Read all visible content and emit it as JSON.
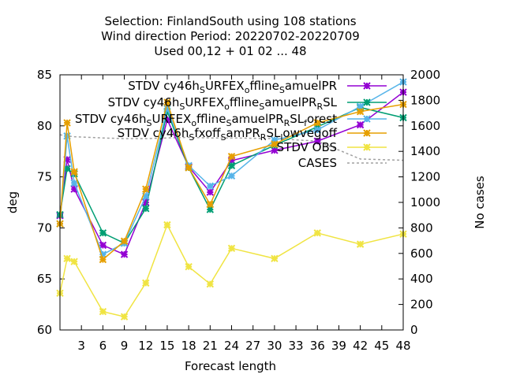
{
  "chart_data": {
    "type": "line",
    "title_lines": [
      "Selection: FinlandSouth using    108 stations",
      "Wind direction   Period: 20220702-20220709",
      "Used  00,12  + 01 02 ... 48"
    ],
    "xlabel": "Forecast length",
    "ylabel": "deg",
    "y2label": "No cases",
    "xlim": [
      0,
      48
    ],
    "ylim": [
      60,
      85
    ],
    "y2lim": [
      0,
      2000
    ],
    "x_ticks": [
      3,
      6,
      9,
      12,
      15,
      18,
      21,
      24,
      27,
      30,
      33,
      36,
      39,
      42,
      45,
      48
    ],
    "y_ticks": [
      60,
      65,
      70,
      75,
      80,
      85
    ],
    "y2_ticks": [
      0,
      200,
      400,
      600,
      800,
      1000,
      1200,
      1400,
      1600,
      1800,
      2000
    ],
    "grid": false,
    "legend_position": "top-right",
    "series": [
      {
        "name": "STDV cy46h_SURFEX_offline_SamuelPR",
        "legend_parts": [
          [
            "STDV cy46h",
            "n"
          ],
          [
            "S",
            "sub"
          ],
          [
            "URFEX",
            "n"
          ],
          [
            "o",
            "sub"
          ],
          [
            "ffline",
            "n"
          ],
          [
            "S",
            "sub"
          ],
          [
            "amuelPR",
            "n"
          ]
        ],
        "color": "#9400d3",
        "marker": "x",
        "x": [
          0,
          1,
          2,
          6,
          9,
          12,
          15,
          18,
          21,
          24,
          30,
          36,
          42,
          48
        ],
        "values": [
          71.2,
          76.7,
          73.8,
          68.3,
          67.4,
          72.5,
          80.6,
          76.0,
          73.5,
          76.6,
          77.6,
          78.5,
          80.1,
          83.3
        ]
      },
      {
        "name": "STDV cy46h_SURFEX_offline_SamuelPR_RSL",
        "legend_parts": [
          [
            "STDV cy46h",
            "n"
          ],
          [
            "S",
            "sub"
          ],
          [
            "URFEX",
            "n"
          ],
          [
            "o",
            "sub"
          ],
          [
            "ffline",
            "n"
          ],
          [
            "S",
            "sub"
          ],
          [
            "amuelPR",
            "n"
          ],
          [
            "R",
            "sub"
          ],
          [
            "SL",
            "n"
          ]
        ],
        "color": "#009e73",
        "marker": "x",
        "x": [
          0,
          1,
          2,
          6,
          9,
          12,
          15,
          18,
          21,
          24,
          30,
          36,
          42,
          48
        ],
        "values": [
          71.3,
          75.8,
          75.3,
          69.5,
          68.5,
          71.9,
          81.4,
          75.9,
          71.8,
          76.1,
          78.1,
          79.9,
          81.8,
          80.8
        ]
      },
      {
        "name": "STDV cy46h_SURFEX_offline_SamuelPR_RSL_forest",
        "legend_parts": [
          [
            "STDV cy46h",
            "n"
          ],
          [
            "S",
            "sub"
          ],
          [
            "URFEX",
            "n"
          ],
          [
            "o",
            "sub"
          ],
          [
            "ffline",
            "n"
          ],
          [
            "S",
            "sub"
          ],
          [
            "amuelPR",
            "n"
          ],
          [
            "R",
            "sub"
          ],
          [
            "SL",
            "n"
          ],
          [
            "f",
            "sub"
          ],
          [
            "orest",
            "n"
          ]
        ],
        "color": "#56b4e9",
        "marker": "x",
        "x": [
          0,
          1,
          2,
          6,
          9,
          12,
          15,
          18,
          21,
          24,
          30,
          36,
          42,
          48
        ],
        "values": [
          70.4,
          79.0,
          74.4,
          67.4,
          68.5,
          73.1,
          81.7,
          76.1,
          74.1,
          75.1,
          78.6,
          79.6,
          81.9,
          84.3
        ]
      },
      {
        "name": "STDV cy46h_Sfxoff_SamPR_RSL_lowvegoff",
        "legend_parts": [
          [
            "STDV cy46h",
            "n"
          ],
          [
            "S",
            "sub"
          ],
          [
            "fxoff",
            "n"
          ],
          [
            "S",
            "sub"
          ],
          [
            "amPR",
            "n"
          ],
          [
            "R",
            "sub"
          ],
          [
            "SL",
            "n"
          ],
          [
            "l",
            "sub"
          ],
          [
            "owvegoff",
            "n"
          ]
        ],
        "color": "#e69f00",
        "marker": "x",
        "x": [
          0,
          1,
          2,
          6,
          9,
          12,
          15,
          18,
          21,
          24,
          30,
          36,
          42,
          48
        ],
        "values": [
          70.4,
          80.3,
          75.5,
          66.9,
          68.7,
          73.8,
          82.3,
          75.9,
          72.3,
          77.0,
          78.2,
          80.3,
          81.4,
          82.1
        ]
      },
      {
        "name": "STDV OBS",
        "legend_parts": [
          [
            "STDV OBS",
            "n"
          ]
        ],
        "color": "#f0e442",
        "marker": "x",
        "x": [
          0,
          1,
          2,
          6,
          9,
          12,
          15,
          18,
          21,
          24,
          30,
          36,
          42,
          48
        ],
        "values": [
          63.6,
          67.0,
          66.7,
          61.8,
          61.3,
          64.6,
          70.3,
          66.2,
          64.5,
          68.0,
          67.0,
          69.5,
          68.4,
          69.4
        ]
      },
      {
        "name": "CASES",
        "legend_parts": [
          [
            "CASES",
            "n"
          ]
        ],
        "color": "#a0a0a0",
        "marker": "none",
        "dashed": true,
        "axis": "y2",
        "x": [
          0,
          1,
          2,
          6,
          9,
          12,
          15,
          18,
          21,
          24,
          30,
          36,
          42,
          48
        ],
        "values": [
          1530,
          1520,
          1515,
          1505,
          1500,
          1500,
          1505,
          1510,
          1505,
          1505,
          1500,
          1480,
          1340,
          1330
        ]
      }
    ]
  }
}
